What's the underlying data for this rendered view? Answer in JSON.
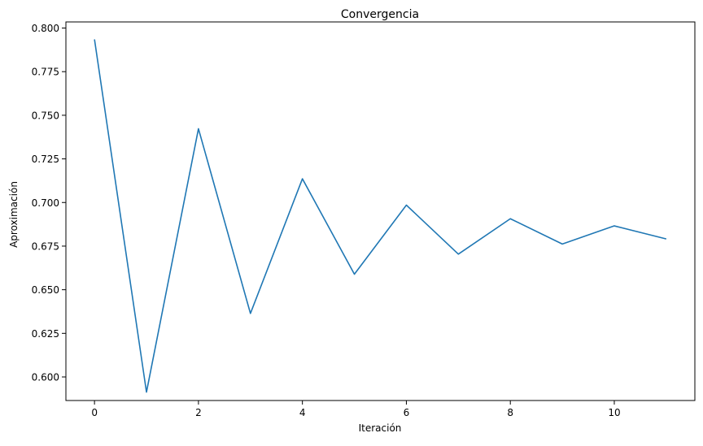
{
  "chart_data": {
    "type": "line",
    "title": "Convergencia",
    "xlabel": "Iteración",
    "ylabel": "Aproximación",
    "xlim": [
      -0.55,
      11.55
    ],
    "ylim": [
      0.5865,
      0.8035
    ],
    "x_ticks": [
      0,
      2,
      4,
      6,
      8,
      10
    ],
    "x_tick_labels": [
      "0",
      "2",
      "4",
      "6",
      "8",
      "10"
    ],
    "y_ticks": [
      0.6,
      0.625,
      0.65,
      0.675,
      0.7,
      0.725,
      0.75,
      0.775,
      0.8
    ],
    "y_tick_labels": [
      "0.600",
      "0.625",
      "0.650",
      "0.675",
      "0.700",
      "0.725",
      "0.750",
      "0.775",
      "0.800"
    ],
    "grid": false,
    "legend": false,
    "series": [
      {
        "color": "#1f77b4",
        "x": [
          0,
          1,
          2,
          3,
          4,
          5,
          6,
          7,
          8,
          9,
          10,
          11
        ],
        "y": [
          0.7935,
          0.5913,
          0.7423,
          0.6364,
          0.7136,
          0.6589,
          0.6985,
          0.6704,
          0.6907,
          0.6762,
          0.6866,
          0.6791
        ]
      }
    ]
  }
}
